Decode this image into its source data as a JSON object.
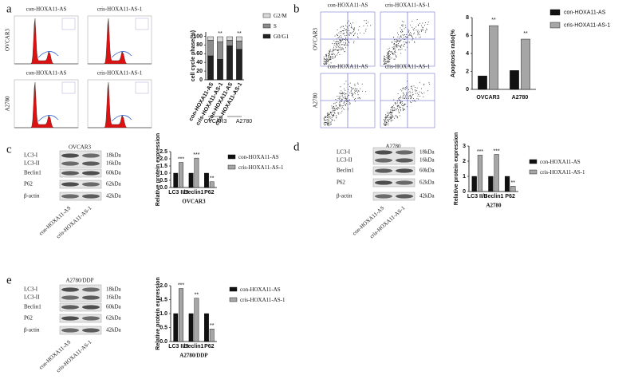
{
  "letters": [
    "a",
    "b",
    "c",
    "d",
    "e"
  ],
  "flow_a": {
    "columns": [
      "con-HOXA11-AS",
      "cris-HOXA11-AS-1"
    ],
    "rows": [
      "OVCAR3",
      "A2780"
    ]
  },
  "flow_b": {
    "columns": [
      "con-HOXA11-AS",
      "cris-HOXA11-AS-1"
    ],
    "rows": [
      "OVCAR3",
      "A2780"
    ]
  },
  "blots": [
    {
      "title": "OVCAR3",
      "bands": [
        "LC3-I",
        "LC3-II",
        "Beclin1",
        "P62",
        "β-actin"
      ],
      "sizes": [
        "18kDa",
        "16kDa",
        "60kDa",
        "62kDa",
        "42kDa"
      ],
      "lanes": [
        "con-HOXA11-AS",
        "cris-HOXA11-AS-1"
      ]
    },
    {
      "title": "A2780",
      "bands": [
        "LC3-I",
        "LC3-II",
        "Beclin1",
        "P62",
        "β-actin"
      ],
      "sizes": [
        "18kDa",
        "16kDa",
        "60kDa",
        "62kDa",
        "42kDa"
      ],
      "lanes": [
        "con-HOXA11-AS",
        "cris-HOXA11-AS-1"
      ]
    },
    {
      "title": "A2780/DDP",
      "bands": [
        "LC3-I",
        "LC3-II",
        "Beclin1",
        "P62",
        "β-actin"
      ],
      "sizes": [
        "18kDa",
        "16kDa",
        "60kDa",
        "62kDa",
        "42kDa"
      ],
      "lanes": [
        "con-HOXA11-AS",
        "cris-HOXA11-AS-1"
      ]
    }
  ],
  "chart_data": [
    {
      "type": "bar",
      "stacked": true,
      "y_label": "cell cycle phase(%)",
      "categories": [
        "con-HOXA11-AS",
        "cris-HOXA11-AS-1",
        "con-HOXA11-AS",
        "cris-HOXA11-AS-1"
      ],
      "groups": [
        "OVCAR3",
        "A2780"
      ],
      "annotations": [
        null,
        "**",
        null,
        "**"
      ],
      "series": [
        {
          "name": "G0/G1",
          "color": "#222222",
          "values": [
            55,
            47,
            78,
            70
          ]
        },
        {
          "name": "S",
          "color": "#8c8c8c",
          "values": [
            36,
            40,
            13,
            19
          ]
        },
        {
          "name": "G2/M",
          "color": "#d9d9d9",
          "values": [
            8,
            12,
            8,
            10
          ]
        }
      ],
      "ylim": [
        0,
        110
      ],
      "yticks": [
        0,
        20,
        40,
        60,
        80,
        100
      ]
    },
    {
      "type": "bar",
      "y_label": "Apoptosis ratio(%",
      "categories": [
        "OVCAR3",
        "A2780"
      ],
      "series": [
        {
          "name": "con-HOXA11-AS",
          "color": "#111111",
          "values": [
            1.5,
            2.1
          ]
        },
        {
          "name": "cris-HOXA11-AS-1",
          "color": "#a6a6a6",
          "values": [
            7.1,
            5.6
          ],
          "annotations": [
            "**",
            "**"
          ]
        }
      ],
      "ylim": [
        0,
        8
      ],
      "yticks": [
        0,
        2,
        4,
        6,
        8
      ]
    },
    {
      "type": "bar",
      "y_label": "Relative protein expression",
      "x_label": "OVCAR3",
      "categories": [
        "LC3 II/ I",
        "Beclin1",
        "P62"
      ],
      "series": [
        {
          "name": "con-HOXA11-AS",
          "color": "#111111",
          "values": [
            1,
            1,
            1
          ]
        },
        {
          "name": "cris-HOXA11-AS-1",
          "color": "#a6a6a6",
          "values": [
            1.75,
            2.05,
            0.4
          ],
          "annotations": [
            "***",
            "***",
            "**"
          ]
        }
      ],
      "ylim": [
        0,
        2.5
      ],
      "yticks": [
        {
          "value": 0,
          "label": "0.0"
        },
        0.5,
        {
          "value": 1,
          "label": "1.0"
        },
        1.5,
        {
          "value": 2,
          "label": "2.0"
        },
        2.5
      ]
    },
    {
      "type": "bar",
      "y_label": "Relative protein expression",
      "x_label": "A2780",
      "categories": [
        "LC3 II/ I",
        "Beclin1",
        "P62"
      ],
      "series": [
        {
          "name": "con-HOXA11-AS",
          "color": "#111111",
          "values": [
            1,
            1,
            1
          ]
        },
        {
          "name": "cris-HOXA11-AS-1",
          "color": "#a6a6a6",
          "values": [
            2.4,
            2.45,
            0.35
          ],
          "annotations": [
            "***",
            "***",
            "**"
          ]
        }
      ],
      "ylim": [
        0,
        3
      ],
      "yticks": [
        0,
        1,
        2,
        3
      ]
    },
    {
      "type": "bar",
      "y_label": "Relative protein expression",
      "x_label": "A2780/DDP",
      "categories": [
        "LC3 II/ I",
        "Beclin1",
        "P62"
      ],
      "series": [
        {
          "name": "con-HOXA11-AS",
          "color": "#111111",
          "values": [
            1,
            1,
            1
          ]
        },
        {
          "name": "cris-HOXA11-AS-1",
          "color": "#a6a6a6",
          "values": [
            1.9,
            1.55,
            0.45
          ],
          "annotations": [
            "***",
            "**",
            "**"
          ]
        }
      ],
      "ylim": [
        0,
        2
      ],
      "yticks": [
        {
          "value": 0,
          "label": "0.0"
        },
        0.5,
        {
          "value": 1,
          "label": "1.0"
        },
        1.5,
        {
          "value": 2,
          "label": "2.0"
        }
      ]
    }
  ]
}
